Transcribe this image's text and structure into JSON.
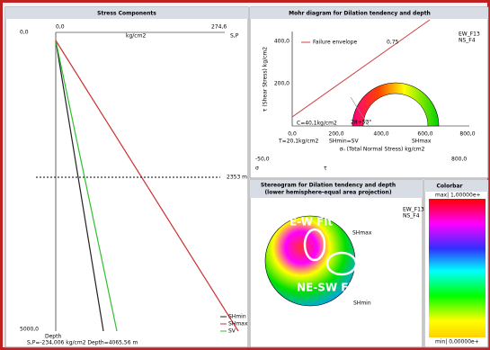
{
  "stress_panel": {
    "title": "Stress Components",
    "x_axis": {
      "min": "0,0",
      "max": "274,6",
      "unit": "kg/cm2",
      "end_label": "S,P"
    },
    "y_axis": {
      "min": "0,0",
      "max": "5000,0",
      "label": "Depth"
    },
    "depth_marker": "2353 m",
    "legend": [
      "SHmin",
      "SHmax",
      "SV"
    ],
    "status": "S,P=-234,006 kg/cm2   Depth=4065,56 m"
  },
  "mohr_panel": {
    "title": "Mohr diagram for Dilation tendency and depth",
    "y_label": "τ (Shear Stress) kg/cm2",
    "yticks": [
      "400,0",
      "200,0"
    ],
    "xticks": [
      "0,0",
      "200,0",
      "400,0",
      "600,0",
      "800,0"
    ],
    "x_label": "σₙ (Total Normal Stress) kg/cm2",
    "legend": {
      "envelope": "Failure envelope",
      "value": "0,75"
    },
    "annotations": {
      "cohesion": "C=40,1kg/cm2",
      "angle": "28+53°",
      "tension": "T=20,1kg/cm2",
      "shmin": "SHmin=SV",
      "shmax": "SHmax"
    },
    "footer": {
      "left": "-50,0",
      "sigma": "σ",
      "tau": "τ",
      "right": "800,0"
    },
    "series": [
      "EW_F13",
      "NS_F4"
    ]
  },
  "stereo_panel": {
    "title": "Stereogram for Dilation tendency and depth",
    "subtitle": "(lower hemisphere-equal area projection)",
    "series": [
      "EW_F13",
      "NS_F4"
    ],
    "labels": {
      "shmax": "SHmax",
      "shmin": "SHmin",
      "ew": "E-W Flt",
      "nesw": "NE-SW Flt"
    }
  },
  "colorbar_panel": {
    "title": "Colorbar",
    "max": "max| 1,00000e+",
    "min": "min| 0,00000e+"
  }
}
